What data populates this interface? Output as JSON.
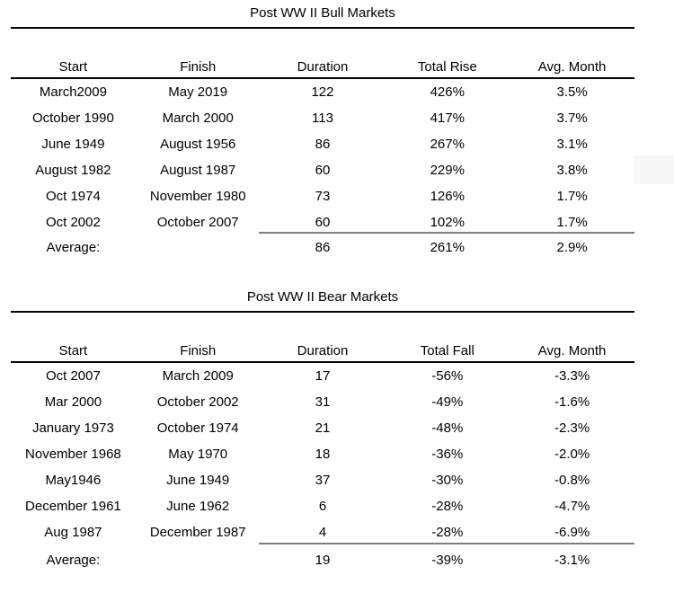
{
  "colors": {
    "background": "#ffffff",
    "text": "#000000",
    "table_rule": "#000000",
    "average_rule": "#7d7d7d",
    "artifact_box": "#f7f7f7"
  },
  "tables": [
    {
      "title": "Post WW II Bull Markets",
      "columns": [
        "Start",
        "Finish",
        "Duration",
        "Total Rise",
        "Avg. Month"
      ],
      "rows": [
        [
          "March2009",
          "May 2019",
          "122",
          "426%",
          "3.5%"
        ],
        [
          "October 1990",
          "March 2000",
          "113",
          "417%",
          "3.7%"
        ],
        [
          "June 1949",
          "August 1956",
          "86",
          "267%",
          "3.1%"
        ],
        [
          "August 1982",
          "August 1987",
          "60",
          "229%",
          "3.8%"
        ],
        [
          "Oct 1974",
          "November 1980",
          "73",
          "126%",
          "1.7%"
        ],
        [
          "Oct 2002",
          "October 2007",
          "60",
          "102%",
          "1.7%"
        ]
      ],
      "average": {
        "label": "Average:",
        "values": [
          "86",
          "261%",
          "2.9%"
        ]
      }
    },
    {
      "title": "Post WW II Bear Markets",
      "columns": [
        "Start",
        "Finish",
        "Duration",
        "Total Fall",
        "Avg. Month"
      ],
      "rows": [
        [
          "Oct 2007",
          "March 2009",
          "17",
          "-56%",
          "-3.3%"
        ],
        [
          "Mar 2000",
          "October 2002",
          "31",
          "-49%",
          "-1.6%"
        ],
        [
          "January 1973",
          "October 1974",
          "21",
          "-48%",
          "-2.3%"
        ],
        [
          "November 1968",
          "May 1970",
          "18",
          "-36%",
          "-2.0%"
        ],
        [
          "May1946",
          "June 1949",
          "37",
          "-30%",
          "-0.8%"
        ],
        [
          "December 1961",
          "June 1962",
          "6",
          "-28%",
          "-4.7%"
        ],
        [
          "Aug 1987",
          "December 1987",
          "4",
          "-28%",
          "-6.9%"
        ]
      ],
      "average": {
        "label": "Average:",
        "values": [
          "19",
          "-39%",
          "-3.1%"
        ]
      }
    }
  ]
}
